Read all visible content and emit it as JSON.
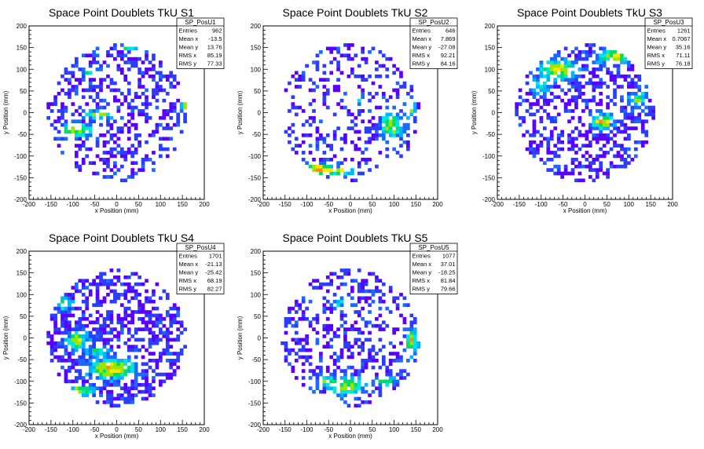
{
  "colors": {
    "frame": "#000000",
    "palette": [
      "#5a00ff",
      "#2b3dff",
      "#1a6aff",
      "#00b4ff",
      "#00e5e0",
      "#00dd66",
      "#9be600",
      "#ffe600",
      "#ff8c00",
      "#ff1a00"
    ]
  },
  "axis": {
    "xlabel": "x Position (mm)",
    "ylabel": "y Position (mm)",
    "xlim": [
      -200,
      200
    ],
    "ylim": [
      -200,
      200
    ],
    "xticks": [
      "-200",
      "-150",
      "-100",
      "-50",
      "0",
      "50",
      "100",
      "150",
      "200"
    ],
    "yticks": [
      "-200",
      "-150",
      "-100",
      "-50",
      "0",
      "50",
      "100",
      "150",
      "200"
    ]
  },
  "chart_data": [
    {
      "type": "heatmap",
      "title": "Space Point Doublets TkU S1",
      "xlabel": "x Position (mm)",
      "ylabel": "y Position (mm)",
      "xlim": [
        -200,
        200
      ],
      "ylim": [
        -200,
        200
      ],
      "stats": {
        "name": "SP_PosU1",
        "rows": [
          {
            "label": "Entries",
            "value": "962"
          },
          {
            "label": "Mean x",
            "value": "-13.5"
          },
          {
            "label": "Mean y",
            "value": "13.76"
          },
          {
            "label": "RMS x",
            "value": "85.19"
          },
          {
            "label": "RMS y",
            "value": "77.33"
          }
        ]
      },
      "entries": 962,
      "mean_x": -13.5,
      "mean_y": 13.76,
      "rms_x": 85.19,
      "rms_y": 77.33,
      "grid": false,
      "legend_position": "top-right"
    },
    {
      "type": "heatmap",
      "title": "Space Point Doublets TkU S2",
      "xlabel": "x Position (mm)",
      "ylabel": "y Position (mm)",
      "xlim": [
        -200,
        200
      ],
      "ylim": [
        -200,
        200
      ],
      "stats": {
        "name": "SP_PosU2",
        "rows": [
          {
            "label": "Entries",
            "value": "646"
          },
          {
            "label": "Mean x",
            "value": "7.869"
          },
          {
            "label": "Mean y",
            "value": "-27.08"
          },
          {
            "label": "RMS x",
            "value": "92.21"
          },
          {
            "label": "RMS y",
            "value": "84.16"
          }
        ]
      },
      "entries": 646,
      "mean_x": 7.869,
      "mean_y": -27.08,
      "rms_x": 92.21,
      "rms_y": 84.16,
      "grid": false,
      "legend_position": "top-right"
    },
    {
      "type": "heatmap",
      "title": "Space Point Doublets TkU S3",
      "xlabel": "x Position (mm)",
      "ylabel": "y Position (mm)",
      "xlim": [
        -200,
        200
      ],
      "ylim": [
        -200,
        200
      ],
      "stats": {
        "name": "SP_PosU3",
        "rows": [
          {
            "label": "Entries",
            "value": "1261"
          },
          {
            "label": "Mean x",
            "value": "0.7067"
          },
          {
            "label": "Mean y",
            "value": "35.16"
          },
          {
            "label": "RMS x",
            "value": "71.11"
          },
          {
            "label": "RMS y",
            "value": "76.18"
          }
        ]
      },
      "entries": 1261,
      "mean_x": 0.7067,
      "mean_y": 35.16,
      "rms_x": 71.11,
      "rms_y": 76.18,
      "grid": false,
      "legend_position": "top-right"
    },
    {
      "type": "heatmap",
      "title": "Space Point Doublets TkU S4",
      "xlabel": "x Position (mm)",
      "ylabel": "y Position (mm)",
      "xlim": [
        -200,
        200
      ],
      "ylim": [
        -200,
        200
      ],
      "stats": {
        "name": "SP_PosU4",
        "rows": [
          {
            "label": "Entries",
            "value": "1701"
          },
          {
            "label": "Mean x",
            "value": "-21.13"
          },
          {
            "label": "Mean y",
            "value": "-25.42"
          },
          {
            "label": "RMS x",
            "value": "68.19"
          },
          {
            "label": "RMS y",
            "value": "82.27"
          }
        ]
      },
      "entries": 1701,
      "mean_x": -21.13,
      "mean_y": -25.42,
      "rms_x": 68.19,
      "rms_y": 82.27,
      "grid": false,
      "legend_position": "top-right"
    },
    {
      "type": "heatmap",
      "title": "Space Point Doublets TkU S5",
      "xlabel": "x Position (mm)",
      "ylabel": "y Position (mm)",
      "xlim": [
        -200,
        200
      ],
      "ylim": [
        -200,
        200
      ],
      "stats": {
        "name": "SP_PosU5",
        "rows": [
          {
            "label": "Entries",
            "value": "1077"
          },
          {
            "label": "Mean x",
            "value": "37.01"
          },
          {
            "label": "Mean y",
            "value": "-18.25"
          },
          {
            "label": "RMS x",
            "value": "81.84"
          },
          {
            "label": "RMS y",
            "value": "79.66"
          }
        ]
      },
      "entries": 1077,
      "mean_x": 37.01,
      "mean_y": -18.25,
      "rms_x": 81.84,
      "rms_y": 79.66,
      "grid": false,
      "legend_position": "top-right"
    }
  ]
}
